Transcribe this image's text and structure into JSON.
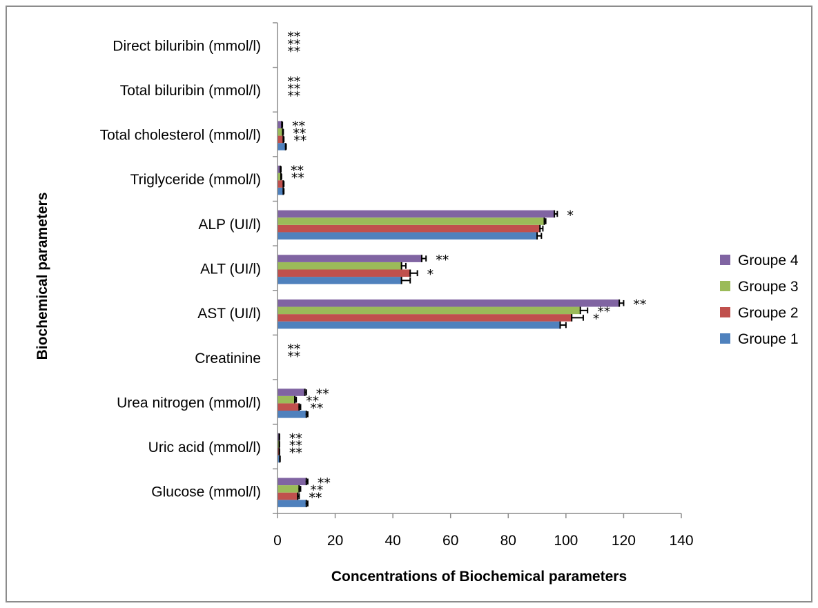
{
  "chart_data": {
    "type": "bar",
    "orientation": "horizontal",
    "xlabel": "Concentrations of Biochemical parameters",
    "ylabel": "Biochemical parameters",
    "xlim": [
      0,
      140
    ],
    "xticks": [
      0,
      20,
      40,
      60,
      80,
      100,
      120,
      140
    ],
    "grid": false,
    "legend_position": "right",
    "categories": [
      "Glucose (mmol/l)",
      "Uric acid (mmol/l)",
      "Urea nitrogen (mmol/l)",
      "Creatinine",
      "AST (UI/l)",
      "ALT (UI/l)",
      "ALP (UI/l)",
      "Triglyceride (mmol/l)",
      "Total cholesterol (mmol/l)",
      "Total biluribin (mmol/l)",
      "Direct biluribin (mmol/l)"
    ],
    "series": [
      {
        "name": "Groupe 1",
        "color": "#4F81BD",
        "values": [
          10,
          0.8,
          10,
          0.05,
          98,
          43,
          90,
          2,
          2.8,
          0.05,
          0.05
        ],
        "errors": [
          0.5,
          0.1,
          0.5,
          0,
          2,
          3,
          1.5,
          0.2,
          0.2,
          0,
          0
        ]
      },
      {
        "name": "Groupe 2",
        "color": "#C0504D",
        "values": [
          7,
          0.6,
          7.5,
          0.05,
          102,
          46,
          91,
          2,
          2,
          0.05,
          0.05
        ],
        "errors": [
          0.5,
          0.1,
          0.5,
          0,
          4,
          2.5,
          1,
          0.2,
          0.2,
          0,
          0
        ]
      },
      {
        "name": "Groupe 3",
        "color": "#9BBB59",
        "values": [
          7.5,
          0.6,
          6,
          0.05,
          105,
          43,
          92.5,
          1.2,
          1.8,
          0.05,
          0.05
        ],
        "errors": [
          0.5,
          0.1,
          0.5,
          0,
          2.5,
          1.5,
          0.5,
          0.2,
          0.2,
          0,
          0
        ]
      },
      {
        "name": "Groupe 4",
        "color": "#8064A2",
        "values": [
          10,
          0.6,
          9.5,
          0.05,
          118.5,
          50,
          96,
          1,
          1.5,
          0.05,
          0.05
        ],
        "errors": [
          0.5,
          0.1,
          0.5,
          0,
          1.5,
          1.5,
          1,
          0.2,
          0.2,
          0,
          0
        ]
      }
    ],
    "annotations": [
      {
        "category": 0,
        "series": 3,
        "text": "**"
      },
      {
        "category": 0,
        "series": 2,
        "text": "**"
      },
      {
        "category": 0,
        "series": 1,
        "text": "**"
      },
      {
        "category": 1,
        "series": 3,
        "text": "**"
      },
      {
        "category": 1,
        "series": 2,
        "text": "**"
      },
      {
        "category": 1,
        "series": 1,
        "text": "**"
      },
      {
        "category": 2,
        "series": 3,
        "text": "**"
      },
      {
        "category": 2,
        "series": 2,
        "text": "**"
      },
      {
        "category": 2,
        "series": 1,
        "text": "**"
      },
      {
        "category": 3,
        "series": 3,
        "text": "**"
      },
      {
        "category": 3,
        "series": 2,
        "text": "**"
      },
      {
        "category": 4,
        "series": 3,
        "text": "**"
      },
      {
        "category": 4,
        "series": 2,
        "text": "**"
      },
      {
        "category": 4,
        "series": 1,
        "text": "*"
      },
      {
        "category": 5,
        "series": 3,
        "text": "**"
      },
      {
        "category": 5,
        "series": 1,
        "text": "*"
      },
      {
        "category": 6,
        "series": 3,
        "text": "*"
      },
      {
        "category": 7,
        "series": 3,
        "text": "**"
      },
      {
        "category": 7,
        "series": 2,
        "text": "**"
      },
      {
        "category": 8,
        "series": 3,
        "text": "**"
      },
      {
        "category": 8,
        "series": 2,
        "text": "**"
      },
      {
        "category": 8,
        "series": 1,
        "text": "**"
      },
      {
        "category": 9,
        "series": 3,
        "text": "**"
      },
      {
        "category": 9,
        "series": 2,
        "text": "**"
      },
      {
        "category": 9,
        "series": 1,
        "text": "**"
      },
      {
        "category": 10,
        "series": 3,
        "text": "**"
      },
      {
        "category": 10,
        "series": 2,
        "text": "**"
      },
      {
        "category": 10,
        "series": 1,
        "text": "**"
      }
    ]
  }
}
